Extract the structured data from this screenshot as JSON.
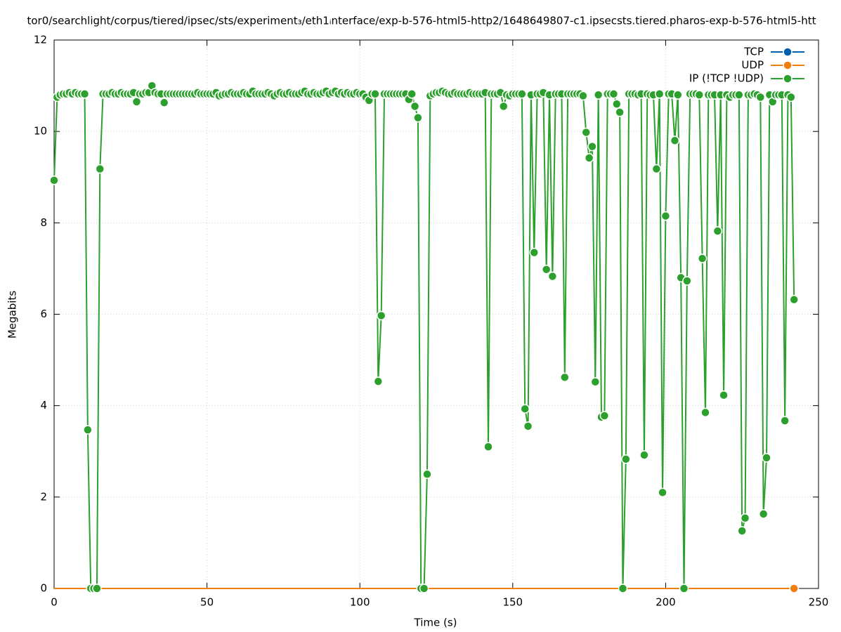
{
  "chart_data": {
    "type": "line",
    "title": "tor0/searchlight/corpus/tiered/ipsec/sts/experiment₃/eth1ᵢnterface/exp-b-576-html5-http2/1648649807-c1.ipsecsts.tiered.pharos-exp-b-576-html5-htt",
    "x_label": "Time (s)",
    "y_label": "Megabits",
    "xlim": [
      0,
      250
    ],
    "ylim": [
      0,
      12
    ],
    "xticks": [
      0,
      50,
      100,
      150,
      200,
      250
    ],
    "yticks": [
      0,
      2,
      4,
      6,
      8,
      10,
      12
    ],
    "grid": true,
    "legend": "top-right",
    "x": [
      0,
      1,
      2,
      3,
      4,
      5,
      6,
      7,
      8,
      9,
      10,
      11,
      12,
      13,
      14,
      15,
      16,
      17,
      18,
      19,
      20,
      21,
      22,
      23,
      24,
      25,
      26,
      27,
      28,
      29,
      30,
      31,
      32,
      33,
      34,
      35,
      36,
      37,
      38,
      39,
      40,
      41,
      42,
      43,
      44,
      45,
      46,
      47,
      48,
      49,
      50,
      51,
      52,
      53,
      54,
      55,
      56,
      57,
      58,
      59,
      60,
      61,
      62,
      63,
      64,
      65,
      66,
      67,
      68,
      69,
      70,
      71,
      72,
      73,
      74,
      75,
      76,
      77,
      78,
      79,
      80,
      81,
      82,
      83,
      84,
      85,
      86,
      87,
      88,
      89,
      90,
      91,
      92,
      93,
      94,
      95,
      96,
      97,
      98,
      99,
      100,
      101,
      102,
      103,
      104,
      105,
      106,
      107,
      108,
      109,
      110,
      111,
      112,
      113,
      114,
      115,
      116,
      117,
      118,
      119,
      120,
      121,
      122,
      123,
      124,
      125,
      126,
      127,
      128,
      129,
      130,
      131,
      132,
      133,
      134,
      135,
      136,
      137,
      138,
      139,
      140,
      141,
      142,
      143,
      144,
      145,
      146,
      147,
      148,
      149,
      150,
      151,
      152,
      153,
      154,
      155,
      156,
      157,
      158,
      159,
      160,
      161,
      162,
      163,
      164,
      165,
      166,
      167,
      168,
      169,
      170,
      171,
      172,
      173,
      174,
      175,
      176,
      177,
      178,
      179,
      180,
      181,
      182,
      183,
      184,
      185,
      186,
      187,
      188,
      189,
      190,
      191,
      192,
      193,
      194,
      195,
      196,
      197,
      198,
      199,
      200,
      201,
      202,
      203,
      204,
      205,
      206,
      207,
      208,
      209,
      210,
      211,
      212,
      213,
      214,
      215,
      216,
      217,
      218,
      219,
      220,
      221,
      222,
      223,
      224,
      225,
      226,
      227,
      228,
      229,
      230,
      231,
      232,
      233,
      234,
      235,
      236,
      237,
      238,
      239,
      240,
      241,
      242
    ],
    "series": [
      {
        "name": "TCP",
        "color": "#0060ad",
        "values": [
          0,
          0,
          0,
          0,
          0,
          0,
          0,
          0,
          0,
          0,
          0,
          0,
          0,
          0,
          0,
          0,
          0,
          0,
          0,
          0,
          0,
          0,
          0,
          0,
          0,
          0,
          0,
          0,
          0,
          0,
          0,
          0,
          0,
          0,
          0,
          0,
          0,
          0,
          0,
          0,
          0,
          0,
          0,
          0,
          0,
          0,
          0,
          0,
          0,
          0,
          0,
          0,
          0,
          0,
          0,
          0,
          0,
          0,
          0,
          0,
          0,
          0,
          0,
          0,
          0,
          0,
          0,
          0,
          0,
          0,
          0,
          0,
          0,
          0,
          0,
          0,
          0,
          0,
          0,
          0,
          0,
          0,
          0,
          0,
          0,
          0,
          0,
          0,
          0,
          0,
          0,
          0,
          0,
          0,
          0,
          0,
          0,
          0,
          0,
          0,
          0,
          0,
          0,
          0,
          0,
          0,
          0,
          0,
          0,
          0,
          0,
          0,
          0,
          0,
          0,
          0,
          0,
          0,
          0,
          0,
          0,
          0,
          0,
          0,
          0,
          0,
          0,
          0,
          0,
          0,
          0,
          0,
          0,
          0,
          0,
          0,
          0,
          0,
          0,
          0,
          0,
          0,
          0,
          0,
          0,
          0,
          0,
          0,
          0,
          0,
          0,
          0,
          0,
          0,
          0,
          0,
          0,
          0,
          0,
          0,
          0,
          0,
          0,
          0,
          0,
          0,
          0,
          0,
          0,
          0,
          0,
          0,
          0,
          0,
          0,
          0,
          0,
          0,
          0,
          0,
          0,
          0,
          0,
          0,
          0,
          0,
          0,
          0,
          0,
          0,
          0,
          0,
          0,
          0,
          0,
          0,
          0,
          0,
          0,
          0,
          0,
          0,
          0,
          0,
          0,
          0,
          0,
          0,
          0,
          0,
          0,
          0,
          0,
          0,
          0,
          0,
          0,
          0,
          0,
          0,
          0,
          0,
          0,
          0,
          0,
          0,
          0,
          0,
          0,
          0,
          0,
          0,
          0,
          0,
          0,
          0,
          0,
          0,
          0,
          0,
          0,
          0,
          0
        ]
      },
      {
        "name": "UDP",
        "color": "#f07f10",
        "values": [
          0,
          0,
          0,
          0,
          0,
          0,
          0,
          0,
          0,
          0,
          0,
          0,
          0,
          0,
          0,
          0,
          0,
          0,
          0,
          0,
          0,
          0,
          0,
          0,
          0,
          0,
          0,
          0,
          0,
          0,
          0,
          0,
          0,
          0,
          0,
          0,
          0,
          0,
          0,
          0,
          0,
          0,
          0,
          0,
          0,
          0,
          0,
          0,
          0,
          0,
          0,
          0,
          0,
          0,
          0,
          0,
          0,
          0,
          0,
          0,
          0,
          0,
          0,
          0,
          0,
          0,
          0,
          0,
          0,
          0,
          0,
          0,
          0,
          0,
          0,
          0,
          0,
          0,
          0,
          0,
          0,
          0,
          0,
          0,
          0,
          0,
          0,
          0,
          0,
          0,
          0,
          0,
          0,
          0,
          0,
          0,
          0,
          0,
          0,
          0,
          0,
          0,
          0,
          0,
          0,
          0,
          0,
          0,
          0,
          0,
          0,
          0,
          0,
          0,
          0,
          0,
          0,
          0,
          0,
          0,
          0,
          0,
          0,
          0,
          0,
          0,
          0,
          0,
          0,
          0,
          0,
          0,
          0,
          0,
          0,
          0,
          0,
          0,
          0,
          0,
          0,
          0,
          0,
          0,
          0,
          0,
          0,
          0,
          0,
          0,
          0,
          0,
          0,
          0,
          0,
          0,
          0,
          0,
          0,
          0,
          0,
          0,
          0,
          0,
          0,
          0,
          0,
          0,
          0,
          0,
          0,
          0,
          0,
          0,
          0,
          0,
          0,
          0,
          0,
          0,
          0,
          0,
          0,
          0,
          0,
          0,
          0,
          0,
          0,
          0,
          0,
          0,
          0,
          0,
          0,
          0,
          0,
          0,
          0,
          0,
          0,
          0,
          0,
          0,
          0,
          0,
          0,
          0,
          0,
          0,
          0,
          0,
          0,
          0,
          0,
          0,
          0,
          0,
          0,
          0,
          0,
          0,
          0,
          0,
          0,
          0,
          0,
          0,
          0,
          0,
          0,
          0,
          0,
          0,
          0,
          0,
          0,
          0,
          0,
          0,
          0,
          0,
          0
        ]
      },
      {
        "name": "IP (!TCP  !UDP)",
        "color": "#2ca02c",
        "values": [
          8.93,
          10.75,
          10.8,
          10.82,
          10.82,
          10.85,
          10.82,
          10.85,
          10.82,
          10.82,
          10.82,
          3.47,
          0,
          0,
          0,
          9.18,
          10.82,
          10.82,
          10.82,
          10.85,
          10.82,
          10.82,
          10.85,
          10.82,
          10.82,
          10.82,
          10.85,
          10.65,
          10.82,
          10.82,
          10.85,
          10.85,
          11.0,
          10.85,
          10.82,
          10.82,
          10.63,
          10.82,
          10.82,
          10.82,
          10.82,
          10.82,
          10.82,
          10.82,
          10.82,
          10.82,
          10.82,
          10.85,
          10.82,
          10.82,
          10.82,
          10.82,
          10.82,
          10.85,
          10.78,
          10.8,
          10.82,
          10.82,
          10.85,
          10.82,
          10.82,
          10.82,
          10.85,
          10.82,
          10.82,
          10.88,
          10.82,
          10.82,
          10.82,
          10.82,
          10.85,
          10.82,
          10.78,
          10.82,
          10.85,
          10.82,
          10.82,
          10.85,
          10.82,
          10.82,
          10.82,
          10.85,
          10.88,
          10.82,
          10.82,
          10.85,
          10.82,
          10.82,
          10.85,
          10.88,
          10.82,
          10.85,
          10.88,
          10.82,
          10.85,
          10.82,
          10.85,
          10.82,
          10.82,
          10.85,
          10.82,
          10.82,
          10.75,
          10.68,
          10.82,
          10.82,
          4.53,
          5.97,
          10.82,
          10.82,
          10.82,
          10.82,
          10.82,
          10.82,
          10.82,
          10.82,
          10.7,
          10.82,
          10.55,
          10.3,
          0,
          0,
          2.5,
          10.78,
          10.82,
          10.85,
          10.85,
          10.88,
          10.85,
          10.82,
          10.82,
          10.85,
          10.82,
          10.82,
          10.82,
          10.82,
          10.85,
          10.82,
          10.82,
          10.82,
          10.82,
          10.85,
          3.1,
          10.82,
          10.82,
          10.82,
          10.85,
          10.55,
          10.8,
          10.78,
          10.82,
          10.82,
          10.82,
          10.82,
          3.93,
          3.55,
          10.8,
          7.35,
          10.82,
          10.82,
          10.85,
          6.98,
          10.8,
          6.83,
          10.82,
          10.82,
          10.82,
          4.62,
          10.82,
          10.82,
          10.82,
          10.82,
          10.82,
          10.78,
          9.98,
          9.42,
          9.67,
          4.52,
          10.8,
          3.75,
          3.78,
          10.82,
          10.82,
          10.82,
          10.6,
          10.42,
          0,
          2.83,
          10.82,
          10.82,
          10.82,
          10.8,
          10.82,
          2.92,
          10.82,
          10.8,
          10.8,
          9.18,
          10.82,
          2.1,
          8.15,
          10.82,
          10.82,
          9.8,
          10.8,
          6.8,
          0,
          6.73,
          10.82,
          10.82,
          10.82,
          10.8,
          7.22,
          3.85,
          10.8,
          10.8,
          10.8,
          7.82,
          10.8,
          4.23,
          10.8,
          10.75,
          10.8,
          10.8,
          10.8,
          1.26,
          1.54,
          10.8,
          10.8,
          10.82,
          10.8,
          10.75,
          1.63,
          2.86,
          10.8,
          10.65,
          10.8,
          10.8,
          10.8,
          3.67,
          10.8,
          10.75,
          6.32
        ]
      }
    ]
  }
}
